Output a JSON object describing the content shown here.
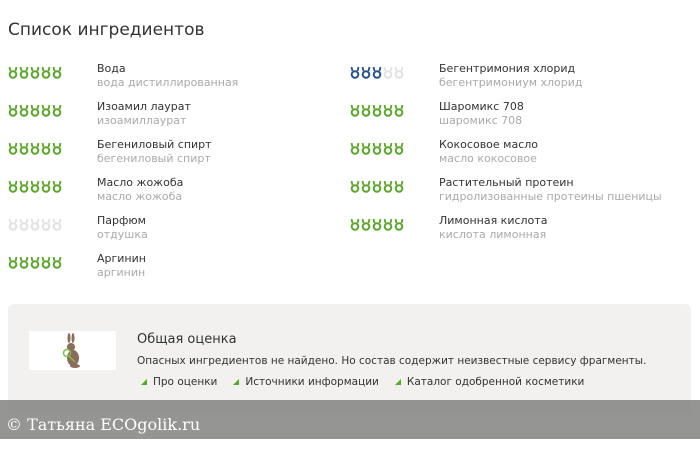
{
  "title": "Список ингредиентов",
  "colors": {
    "green": "#5aa628",
    "blue": "#25518f",
    "empty": "#e2e2e2"
  },
  "ingredients": [
    {
      "name": "Вода",
      "sub": "вода дистиллированная",
      "rating": 5,
      "color": "green"
    },
    {
      "name": "Изоамил лаурат",
      "sub": "изоамиллаурат",
      "rating": 5,
      "color": "green"
    },
    {
      "name": "Бегениловый спирт",
      "sub": "бегениловый спирт",
      "rating": 5,
      "color": "green"
    },
    {
      "name": "Масло жожоба",
      "sub": "масло жожоба",
      "rating": 5,
      "color": "green"
    },
    {
      "name": "Парфюм",
      "sub": "отдушка",
      "rating": 0,
      "color": "empty"
    },
    {
      "name": "Аргинин",
      "sub": "аргинин",
      "rating": 5,
      "color": "green"
    },
    {
      "name": "Бегентримония хлорид",
      "sub": "бегентримониум хлорид",
      "rating": 3,
      "color": "blue"
    },
    {
      "name": "Шаромикс 708",
      "sub": "шаромикс 708",
      "rating": 5,
      "color": "green"
    },
    {
      "name": "Кокосовое масло",
      "sub": "масло кокосовое",
      "rating": 5,
      "color": "green"
    },
    {
      "name": "Растительный протеин",
      "sub": "гидролизованные протеины пшеницы",
      "rating": 5,
      "color": "green"
    },
    {
      "name": "Лимонная кислота",
      "sub": "кислота лимонная",
      "rating": 5,
      "color": "green"
    }
  ],
  "summary": {
    "title": "Общая оценка",
    "text": "Опасных ингредиентов не найдено. Но состав содержит неизвестные сервису фрагменты.",
    "links": [
      "Про оценки",
      "Источники информации",
      "Каталог одобренной косметики"
    ]
  },
  "watermark": "© Татьяна  ECOgolik.ru"
}
